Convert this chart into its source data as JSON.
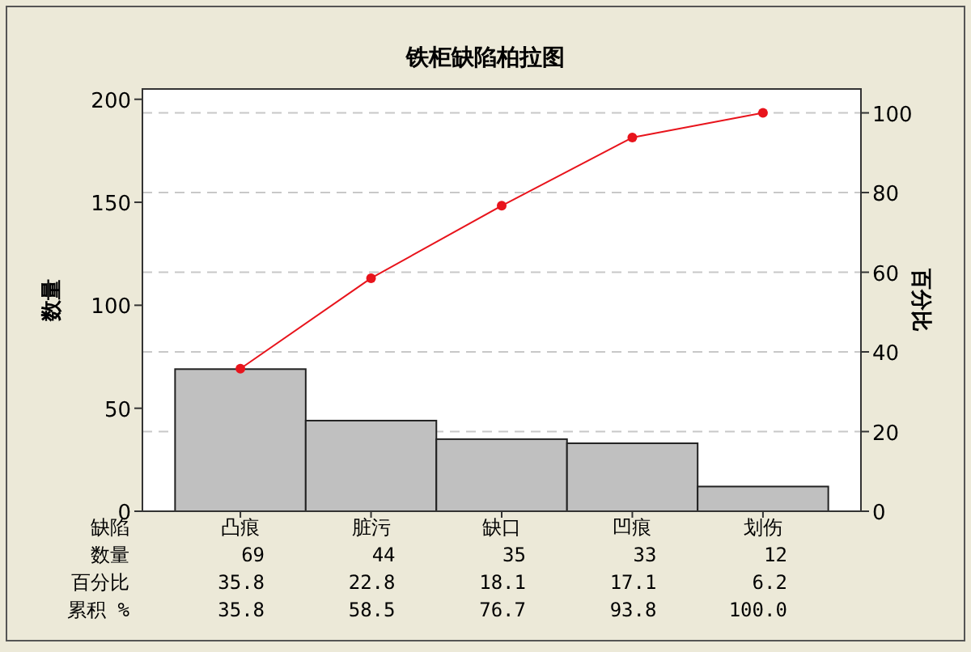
{
  "chart_data": {
    "type": "bar",
    "title": "铁柜缺陷柏拉图",
    "xlabel": "缺陷",
    "ylabel": "数量",
    "y2label": "百分比",
    "categories": [
      "凸痕",
      "脏污",
      "缺口",
      "凹痕",
      "划伤"
    ],
    "series": [
      {
        "name": "数量",
        "color": "#c0c0c0",
        "values": [
          69,
          44,
          35,
          33,
          12
        ],
        "value_labels": [
          "69",
          "44",
          "35",
          "33",
          "12"
        ]
      },
      {
        "type": "line",
        "axis": "y2",
        "color": "#e8141c",
        "marker": "circle",
        "line_style": "solid",
        "values": [
          35.8,
          58.5,
          76.7,
          93.8,
          100.0
        ],
        "value_labels": [
          "35.8",
          "58.5",
          "76.7",
          "93.8",
          "100.0"
        ]
      }
    ],
    "annotations": [
      "百分比",
      "35.8",
      "22.8",
      "18.1",
      "17.1",
      "6.2",
      "累积 %"
    ],
    "ylim": [
      0,
      205
    ],
    "yticks": [
      0,
      50,
      100,
      150,
      200
    ],
    "y2lim": [
      0,
      106
    ],
    "y2ticks": [
      0,
      20,
      40,
      60,
      80,
      100
    ],
    "grid": "y"
  }
}
